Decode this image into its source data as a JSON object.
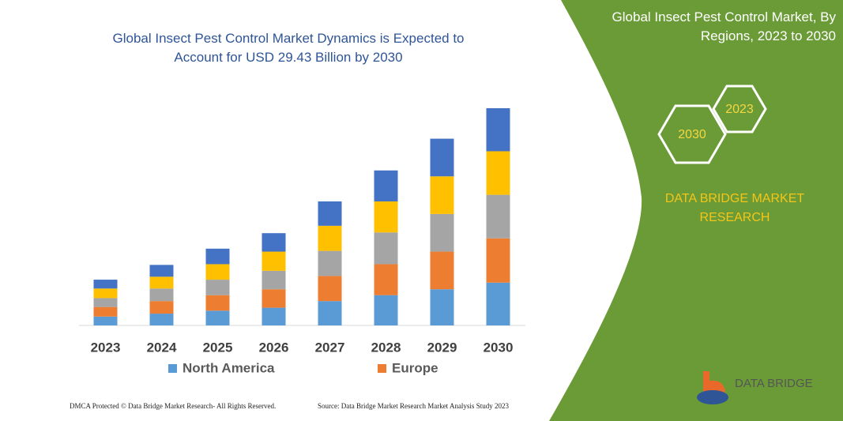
{
  "chart_data": {
    "type": "bar",
    "stacked": true,
    "title": "Global Insect Pest Control Market Dynamics is Expected to Account for USD 29.43 Billion by 2030",
    "categories": [
      "2023",
      "2024",
      "2025",
      "2026",
      "2027",
      "2028",
      "2029",
      "2030"
    ],
    "series": [
      {
        "name": "North America",
        "color": "#5b9bd5",
        "values": [
          1.2,
          1.6,
          2.0,
          2.4,
          3.3,
          4.1,
          4.9,
          5.8
        ]
      },
      {
        "name": "Europe",
        "color": "#ed7d31",
        "values": [
          1.3,
          1.7,
          2.1,
          2.5,
          3.4,
          4.2,
          5.1,
          6.0
        ]
      },
      {
        "color": "#a5a5a5",
        "values": [
          1.2,
          1.7,
          2.1,
          2.5,
          3.4,
          4.3,
          5.1,
          5.9
        ]
      },
      {
        "color": "#ffc000",
        "values": [
          1.3,
          1.6,
          2.1,
          2.6,
          3.4,
          4.2,
          5.1,
          5.9
        ]
      },
      {
        "color": "#4472c4",
        "values": [
          1.2,
          1.6,
          2.1,
          2.5,
          3.3,
          4.2,
          5.1,
          5.83
        ]
      }
    ]
  },
  "panel": {
    "title": "Global Insect Pest Control Market, By Regions, 2023 to 2030",
    "hexagons": [
      "2023",
      "2030"
    ],
    "brand": "DATA BRIDGE MARKET RESEARCH"
  },
  "logo": "DATA BRIDGE",
  "footer": {
    "left": "DMCA Protected © Data Bridge Market Research- All Rights Reserved.",
    "right": "Source: Data Bridge Market Research Market Analysis Study 2023"
  }
}
